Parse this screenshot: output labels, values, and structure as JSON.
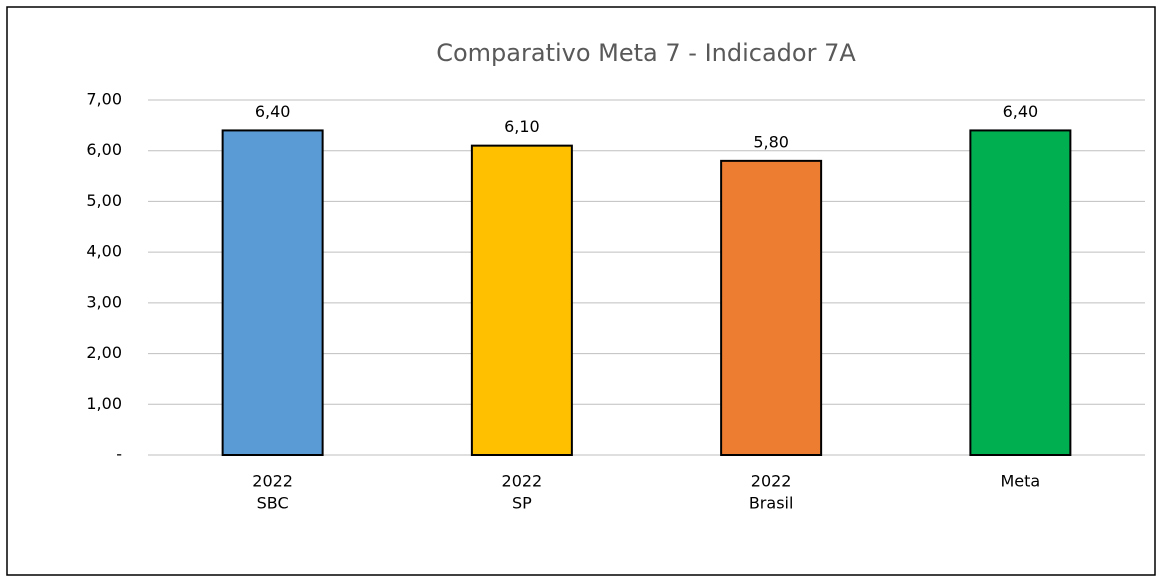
{
  "chart_data": {
    "type": "bar",
    "title": "Comparativo Meta 7 - Indicador 7A",
    "categories": [
      [
        "2022",
        "SBC"
      ],
      [
        "2022",
        "SP"
      ],
      [
        "2022",
        "Brasil"
      ],
      [
        "Meta"
      ]
    ],
    "values": [
      6.4,
      6.1,
      5.8,
      6.4
    ],
    "value_labels": [
      "6,40",
      "6,10",
      "5,80",
      "6,40"
    ],
    "colors": [
      "#5b9bd5",
      "#ffc000",
      "#ed7d31",
      "#00b050"
    ],
    "ylim": [
      0,
      7
    ],
    "yticks": [
      {
        "value": 0,
        "label": "-"
      },
      {
        "value": 1,
        "label": "1,00"
      },
      {
        "value": 2,
        "label": "2,00"
      },
      {
        "value": 3,
        "label": "3,00"
      },
      {
        "value": 4,
        "label": "4,00"
      },
      {
        "value": 5,
        "label": "5,00"
      },
      {
        "value": 6,
        "label": "6,00"
      },
      {
        "value": 7,
        "label": "7,00"
      }
    ],
    "grid": true
  }
}
